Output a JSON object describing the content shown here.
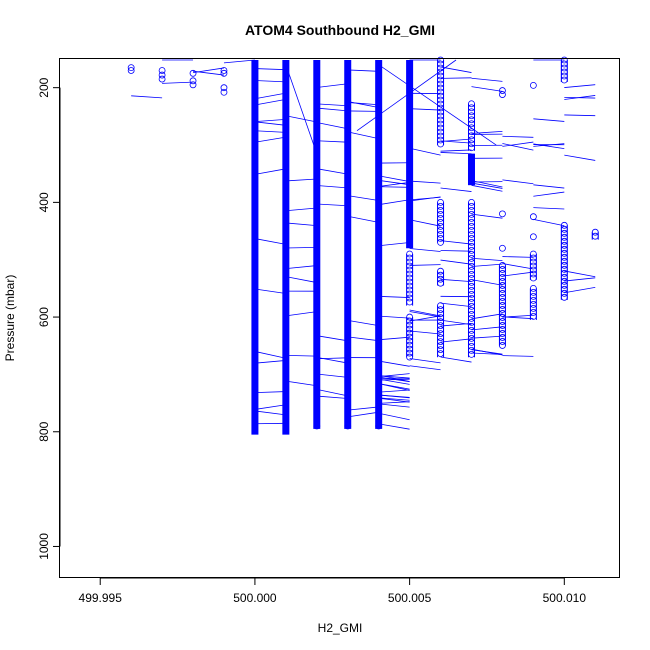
{
  "chart_data": {
    "type": "scatter",
    "title": "ATOM4 Southbound H2_GMI",
    "xlabel": "H2_GMI",
    "ylabel": "Pressure (mbar)",
    "xlim": [
      499.9937,
      500.0118
    ],
    "ylim": [
      1055,
      150
    ],
    "y_reversed": true,
    "xticks": [
      499.995,
      500.0,
      500.005,
      500.01
    ],
    "xtick_labels": [
      "499.995",
      "500.000",
      "500.005",
      "500.010"
    ],
    "yticks": [
      200,
      400,
      600,
      800,
      1000
    ],
    "ytick_labels": [
      "200",
      "400",
      "600",
      "800",
      "1000"
    ],
    "grid": false,
    "legend": "none",
    "color": "#0000ff",
    "marker": "open-circle",
    "connected": true,
    "dense_columns": [
      {
        "x": 500.0,
        "p_range": [
          150,
          805
        ]
      },
      {
        "x": 500.001,
        "p_range": [
          150,
          805
        ]
      },
      {
        "x": 500.002,
        "p_range": [
          150,
          795
        ]
      },
      {
        "x": 500.003,
        "p_range": [
          150,
          795
        ]
      },
      {
        "x": 500.004,
        "p_range": [
          150,
          795
        ]
      },
      {
        "x": 500.005,
        "p_range": [
          150,
          480
        ]
      },
      {
        "x": 500.007,
        "p_range": [
          315,
          370
        ]
      }
    ],
    "sparse_segments": [
      {
        "x": 500.005,
        "p_range": [
          490,
          580
        ]
      },
      {
        "x": 500.005,
        "p_range": [
          600,
          670
        ]
      },
      {
        "x": 500.006,
        "p_range": [
          150,
          300
        ]
      },
      {
        "x": 500.006,
        "p_range": [
          400,
          470
        ]
      },
      {
        "x": 500.006,
        "p_range": [
          520,
          545
        ]
      },
      {
        "x": 500.006,
        "p_range": [
          580,
          670
        ]
      },
      {
        "x": 500.007,
        "p_range": [
          228,
          310
        ]
      },
      {
        "x": 500.007,
        "p_range": [
          400,
          670
        ]
      },
      {
        "x": 500.008,
        "p_range": [
          510,
          650
        ]
      },
      {
        "x": 500.009,
        "p_range": [
          490,
          535
        ]
      },
      {
        "x": 500.009,
        "p_range": [
          550,
          605
        ]
      },
      {
        "x": 500.01,
        "p_range": [
          150,
          190
        ]
      },
      {
        "x": 500.01,
        "p_range": [
          440,
          570
        ]
      },
      {
        "x": 500.011,
        "p_range": [
          452,
          465
        ]
      }
    ],
    "points": [
      {
        "x": 499.996,
        "y": 165
      },
      {
        "x": 499.996,
        "y": 170
      },
      {
        "x": 499.997,
        "y": 170
      },
      {
        "x": 499.997,
        "y": 178
      },
      {
        "x": 499.997,
        "y": 185
      },
      {
        "x": 499.998,
        "y": 175
      },
      {
        "x": 499.998,
        "y": 188
      },
      {
        "x": 499.998,
        "y": 195
      },
      {
        "x": 499.999,
        "y": 170
      },
      {
        "x": 499.999,
        "y": 175
      },
      {
        "x": 499.999,
        "y": 200
      },
      {
        "x": 499.999,
        "y": 208
      },
      {
        "x": 500.008,
        "y": 205
      },
      {
        "x": 500.008,
        "y": 212
      },
      {
        "x": 500.009,
        "y": 196
      },
      {
        "x": 500.008,
        "y": 420
      },
      {
        "x": 500.009,
        "y": 425
      },
      {
        "x": 500.008,
        "y": 480
      },
      {
        "x": 500.009,
        "y": 460
      },
      {
        "x": 500.004,
        "y": 790
      },
      {
        "x": 500.002,
        "y": 790
      },
      {
        "x": 500.003,
        "y": 790
      }
    ]
  }
}
